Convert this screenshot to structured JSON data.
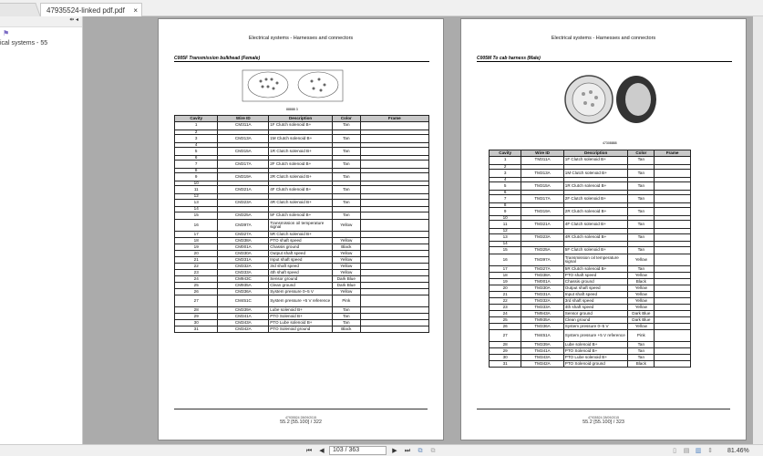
{
  "tab": {
    "title": "47935524-linked pdf.pdf",
    "close": "×"
  },
  "sidebar": {
    "controls": "⇹ ◂",
    "item": "ical systems - 55"
  },
  "pages": [
    {
      "header": "Electrical systems - Harnesses and connectors",
      "section": "C005F Transmission bulkhead (Female)",
      "figure_label": "88888  3",
      "columns": [
        "Cavity",
        "Wire ID",
        "Description",
        "Color",
        "Frame"
      ],
      "rows": [
        [
          "1",
          "CM311A",
          "1F Clutch solenoid B+",
          "Tan",
          ""
        ],
        [
          "2",
          "",
          "",
          "",
          ""
        ],
        [
          "3",
          "CM313A",
          "1M Clutch solenoid B+",
          "Tan",
          ""
        ],
        [
          "4",
          "",
          "",
          "",
          ""
        ],
        [
          "5",
          "CM315A",
          "1R Clutch solenoid B+",
          "Tan",
          ""
        ],
        [
          "6",
          "",
          "",
          "",
          ""
        ],
        [
          "7",
          "CM317A",
          "2F Clutch solenoid B+",
          "Tan",
          ""
        ],
        [
          "8",
          "",
          "",
          "",
          ""
        ],
        [
          "9",
          "CM319A",
          "2R Clutch solenoid B+",
          "Tan",
          ""
        ],
        [
          "10",
          "",
          "",
          "",
          ""
        ],
        [
          "11",
          "CM321A",
          "4F Clutch solenoid B+",
          "Tan",
          ""
        ],
        [
          "12",
          "",
          "",
          "",
          ""
        ],
        [
          "13",
          "CM323A",
          "4R Clutch solenoid B+",
          "Tan",
          ""
        ],
        [
          "14",
          "",
          "",
          "",
          ""
        ],
        [
          "15",
          "CM325A",
          "5F Clutch solenoid B+",
          "Tan",
          ""
        ],
        [
          "16",
          "CM397A",
          "Transmission oil temperature signal",
          "Yellow",
          ""
        ],
        [
          "17",
          "CM327A",
          "5R Clutch solenoid B+",
          "",
          ""
        ],
        [
          "18",
          "CM338A",
          "PTO shaft speed",
          "Yellow",
          ""
        ],
        [
          "19",
          "CM001A",
          "Chassis ground",
          "Black",
          ""
        ],
        [
          "20",
          "CM330A",
          "Output shaft speed",
          "Yellow",
          ""
        ],
        [
          "21",
          "CM331A",
          "Input shaft speed",
          "Yellow",
          ""
        ],
        [
          "22",
          "CM332A",
          "3rd shaft speed",
          "Yellow",
          ""
        ],
        [
          "23",
          "CM333A",
          "4th shaft speed",
          "Yellow",
          ""
        ],
        [
          "24",
          "CM943C",
          "Sensor ground",
          "Dark Blue",
          ""
        ],
        [
          "25",
          "CM935A",
          "Clean ground",
          "Dark Blue",
          ""
        ],
        [
          "26",
          "CM336A",
          "System pressure 0–5 V",
          "Yellow",
          ""
        ],
        [
          "27",
          "CM451C",
          "System pressure +5 V reference",
          "Pink",
          ""
        ],
        [
          "28",
          "CM339A",
          "Lube solenoid B+",
          "Tan",
          ""
        ],
        [
          "29",
          "CM341A",
          "PTO Solenoid B+",
          "Tan",
          ""
        ],
        [
          "30",
          "CM343A",
          "PTO Lube solenoid B+",
          "Tan",
          ""
        ],
        [
          "31",
          "CM342A",
          "PTO Solenoid ground",
          "Black",
          ""
        ]
      ],
      "footer_code": "47935524 28/09/2015",
      "footer_page": "55.2 [55.100] / 322"
    },
    {
      "header": "Electrical systems - Harnesses and connectors",
      "section": "C005M To cab harness (Male)",
      "figure_label": "47308888",
      "columns": [
        "Cavity",
        "Wire ID",
        "Description",
        "Color",
        "Frame"
      ],
      "rows": [
        [
          "1",
          "TM311A",
          "1F Clutch solenoid B+",
          "Tan",
          ""
        ],
        [
          "2",
          "",
          "",
          "",
          ""
        ],
        [
          "3",
          "TM313A",
          "1M Clutch solenoid B+",
          "Tan",
          ""
        ],
        [
          "4",
          "",
          "",
          "",
          ""
        ],
        [
          "5",
          "TM315A",
          "1R Clutch solenoid B+",
          "Tan",
          ""
        ],
        [
          "6",
          "",
          "",
          "",
          ""
        ],
        [
          "7",
          "TM317A",
          "2F Clutch solenoid B+",
          "Tan",
          ""
        ],
        [
          "8",
          "",
          "",
          "",
          ""
        ],
        [
          "9",
          "TM319A",
          "2R Clutch solenoid B+",
          "Tan",
          ""
        ],
        [
          "10",
          "",
          "",
          "",
          ""
        ],
        [
          "11",
          "TM321A",
          "4F Clutch solenoid B+",
          "Tan",
          ""
        ],
        [
          "12",
          "",
          "",
          "",
          ""
        ],
        [
          "13",
          "TM323A",
          "4R Clutch solenoid B+",
          "Tan",
          ""
        ],
        [
          "14",
          "",
          "",
          "",
          ""
        ],
        [
          "15",
          "TM325A",
          "5F Clutch solenoid B+",
          "Tan",
          ""
        ],
        [
          "16",
          "TM397A",
          "Transmission oil temperature signal",
          "Yellow",
          ""
        ],
        [
          "17",
          "TM327A",
          "5R Clutch solenoid B+",
          "Tan",
          ""
        ],
        [
          "18",
          "TM338A",
          "PTO shaft speed",
          "Yellow",
          ""
        ],
        [
          "19",
          "TM001A",
          "Chassis ground",
          "Black",
          ""
        ],
        [
          "20",
          "TM330A",
          "Output shaft speed",
          "Yellow",
          ""
        ],
        [
          "21",
          "TM331A",
          "Input shaft speed",
          "Yellow",
          ""
        ],
        [
          "22",
          "TM332A",
          "3rd shaft speed",
          "Yellow",
          ""
        ],
        [
          "23",
          "TM333A",
          "4th shaft speed",
          "Yellow",
          ""
        ],
        [
          "24",
          "TM943A",
          "Sensor ground",
          "Dark Blue",
          ""
        ],
        [
          "25",
          "TM935A",
          "Clean ground",
          "Dark Blue",
          ""
        ],
        [
          "26",
          "TM336A",
          "System pressure 0–5 V",
          "Yellow",
          ""
        ],
        [
          "27",
          "TM451A",
          "System pressure +5 V reference",
          "Pink",
          ""
        ],
        [
          "28",
          "TM339A",
          "Lube solenoid B+",
          "Tan",
          ""
        ],
        [
          "29",
          "TM341A",
          "PTO Solenoid B+",
          "Tan",
          ""
        ],
        [
          "30",
          "TM343A",
          "PTO Lube solenoid B+",
          "Tan",
          ""
        ],
        [
          "31",
          "TM342A",
          "PTO Solenoid ground",
          "Black",
          ""
        ]
      ],
      "footer_code": "47935524 28/09/2015",
      "footer_page": "55.2 [55.100] / 323"
    }
  ],
  "toolbar": {
    "first": "⏮",
    "prev": "◀",
    "page": "103 / 363",
    "next": "▶",
    "last": "⏭",
    "zoom": "81.46%"
  }
}
